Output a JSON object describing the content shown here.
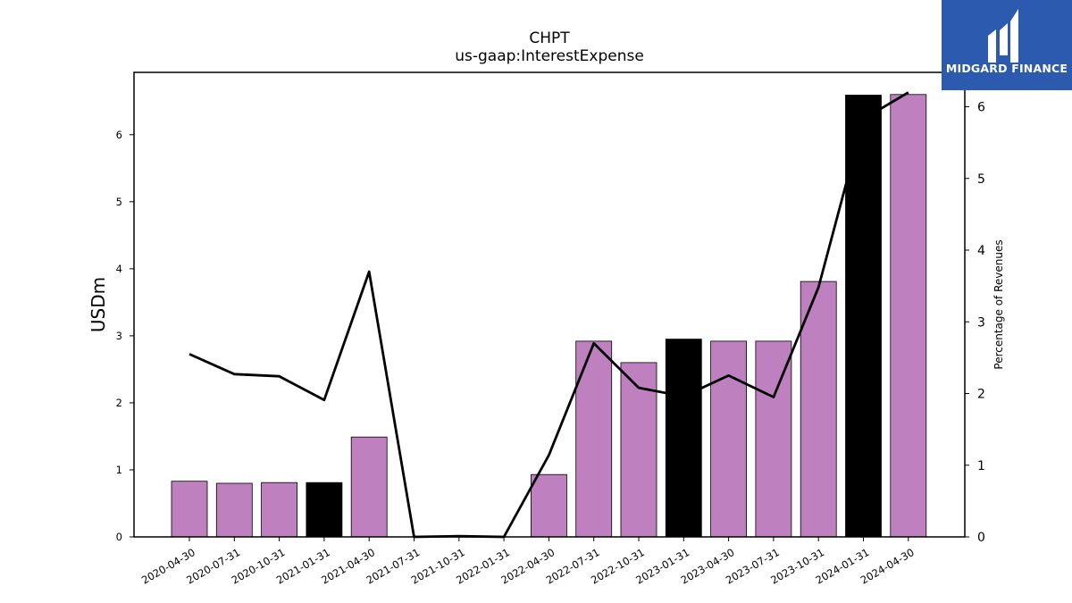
{
  "chart_data": {
    "type": "bar",
    "title": "CHPT",
    "subtitle": "us-gaap:InterestExpense",
    "ylabel": "USDm",
    "y2label": "Percentage of Revenues",
    "categories": [
      "2020-04-30",
      "2020-07-31",
      "2020-10-31",
      "2021-01-31",
      "2021-04-30",
      "2021-07-31",
      "2021-10-31",
      "2022-01-31",
      "2022-04-30",
      "2022-07-31",
      "2022-10-31",
      "2023-01-31",
      "2023-04-30",
      "2023-07-31",
      "2023-10-31",
      "2024-01-31",
      "2024-04-30"
    ],
    "series": [
      {
        "type": "bar",
        "values": [
          0.83,
          0.8,
          0.81,
          0.81,
          1.49,
          0,
          0,
          0,
          0.93,
          2.92,
          2.6,
          2.95,
          2.92,
          2.92,
          3.81,
          6.59,
          6.6
        ],
        "highlight": [
          false,
          false,
          false,
          true,
          false,
          false,
          false,
          false,
          false,
          false,
          false,
          true,
          false,
          false,
          false,
          true,
          false
        ],
        "color": "#bf80bf",
        "highlight_color": "#000000"
      },
      {
        "type": "line",
        "axis": "right",
        "values": [
          2.55,
          2.27,
          2.24,
          1.91,
          3.7,
          0,
          0.01,
          0,
          1.14,
          2.7,
          2.08,
          1.96,
          2.25,
          1.95,
          3.48,
          5.83,
          6.2
        ],
        "color": "#000000"
      }
    ],
    "ylim": [
      0,
      6.93
    ],
    "y2lim": [
      0,
      6.48
    ],
    "yticks": [
      "0",
      "1",
      "2",
      "3",
      "4",
      "5",
      "6"
    ],
    "y2ticks": [
      "0",
      "1",
      "2",
      "3",
      "4",
      "5",
      "6"
    ],
    "grid": false
  },
  "branding": {
    "logo_text": "MIDGARD FINANCE",
    "background_color": "#2c5aae"
  }
}
